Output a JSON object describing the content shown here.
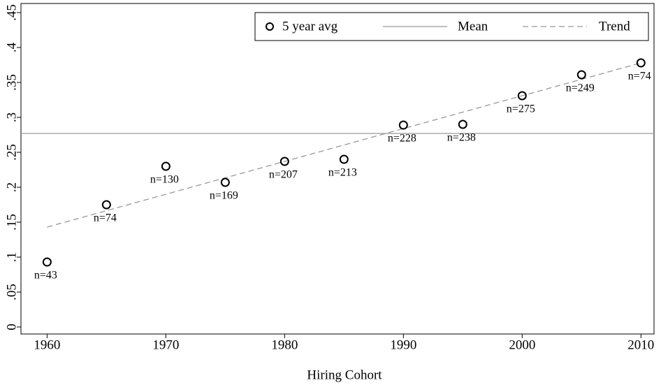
{
  "chart_data": {
    "type": "scatter",
    "xlabel": "Hiring Cohort",
    "x": [
      1960,
      1965,
      1970,
      1975,
      1980,
      1985,
      1990,
      1995,
      2000,
      2005,
      2010
    ],
    "series": [
      {
        "name": "5 year avg",
        "color": "#000000",
        "values": [
          0.093,
          0.175,
          0.23,
          0.207,
          0.237,
          0.24,
          0.289,
          0.29,
          0.331,
          0.361,
          0.378
        ],
        "annotations": [
          "n=43",
          "n=74",
          "n=130",
          "n=169",
          "n=207",
          "n=213",
          "n=228",
          "n=238",
          "n=275",
          "n=249",
          "n=74"
        ]
      },
      {
        "name": "Mean",
        "color": "#999999",
        "x": [
          1957.8,
          2011.1
        ],
        "values": [
          0.277,
          0.277
        ]
      },
      {
        "name": "Trend",
        "color": "#999999",
        "dashed": true,
        "x": [
          1960,
          2010
        ],
        "values": [
          0.143,
          0.378
        ]
      }
    ],
    "xlim": [
      1957.8,
      2011.1
    ],
    "ylim": [
      -0.01,
      0.463
    ],
    "xticks": [
      1960,
      1970,
      1980,
      1990,
      2000,
      2010
    ],
    "yticks": [
      0,
      {
        "value": 0.05,
        "label": ".05"
      },
      {
        "value": 0.1,
        "label": ".1"
      },
      {
        "value": 0.15,
        "label": ".15"
      },
      {
        "value": 0.2,
        "label": ".2"
      },
      {
        "value": 0.25,
        "label": ".25"
      },
      {
        "value": 0.3,
        "label": ".3"
      },
      {
        "value": 0.35,
        "label": ".35"
      },
      {
        "value": 0.4,
        "label": ".4"
      },
      {
        "value": 0.45,
        "label": ".45"
      }
    ],
    "legend": "top-right"
  }
}
